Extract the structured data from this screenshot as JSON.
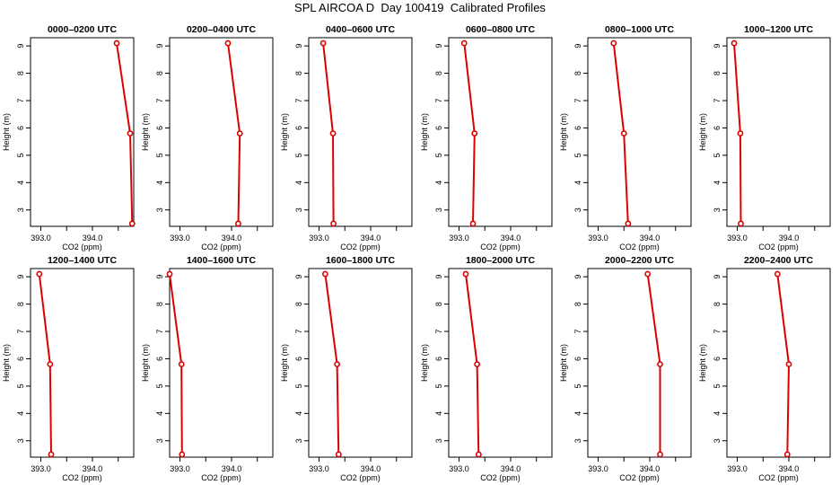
{
  "title": "SPL AIRCOA D  Day 100419  Calibrated Profiles",
  "colors": {
    "series": "#dd0000",
    "axis": "#000000",
    "background": "#ffffff"
  },
  "chart_data": [
    {
      "type": "line",
      "title": "0000–0200 UTC",
      "xlabel": "CO2 (ppm)",
      "ylabel": "Height (m)",
      "xlim": [
        392.8,
        394.8
      ],
      "ylim": [
        2.4,
        9.3
      ],
      "xticks": [
        393.0,
        393.5,
        394.0,
        394.5
      ],
      "xtick_labels": [
        "393.0",
        "",
        "394.0",
        ""
      ],
      "yticks": [
        3,
        4,
        5,
        6,
        7,
        8,
        9
      ],
      "ytick_labels": [
        "3",
        "4",
        "5",
        "6",
        "7",
        "8",
        "9"
      ],
      "x": [
        394.77,
        394.73,
        394.47
      ],
      "y": [
        2.5,
        5.8,
        9.1
      ]
    },
    {
      "type": "line",
      "title": "0200–0400 UTC",
      "xlabel": "CO2 (ppm)",
      "ylabel": "Height (m)",
      "xlim": [
        392.8,
        394.8
      ],
      "ylim": [
        2.4,
        9.3
      ],
      "xticks": [
        393.0,
        393.5,
        394.0,
        394.5
      ],
      "xtick_labels": [
        "393.0",
        "",
        "394.0",
        ""
      ],
      "yticks": [
        3,
        4,
        5,
        6,
        7,
        8,
        9
      ],
      "ytick_labels": [
        "3",
        "4",
        "5",
        "6",
        "7",
        "8",
        "9"
      ],
      "x": [
        394.13,
        394.16,
        393.93
      ],
      "y": [
        2.5,
        5.8,
        9.1
      ]
    },
    {
      "type": "line",
      "title": "0400–0600 UTC",
      "xlabel": "CO2 (ppm)",
      "ylabel": "Height (m)",
      "xlim": [
        392.8,
        394.8
      ],
      "ylim": [
        2.4,
        9.3
      ],
      "xticks": [
        393.0,
        393.5,
        394.0,
        394.5
      ],
      "xtick_labels": [
        "393.0",
        "",
        "394.0",
        ""
      ],
      "yticks": [
        3,
        4,
        5,
        6,
        7,
        8,
        9
      ],
      "ytick_labels": [
        "3",
        "4",
        "5",
        "6",
        "7",
        "8",
        "9"
      ],
      "x": [
        393.28,
        393.27,
        393.08
      ],
      "y": [
        2.5,
        5.8,
        9.1
      ]
    },
    {
      "type": "line",
      "title": "0600–0800 UTC",
      "xlabel": "CO2 (ppm)",
      "ylabel": "Height (m)",
      "xlim": [
        392.8,
        394.8
      ],
      "ylim": [
        2.4,
        9.3
      ],
      "xticks": [
        393.0,
        393.5,
        394.0,
        394.5
      ],
      "xtick_labels": [
        "393.0",
        "",
        "394.0",
        ""
      ],
      "yticks": [
        3,
        4,
        5,
        6,
        7,
        8,
        9
      ],
      "ytick_labels": [
        "3",
        "4",
        "5",
        "6",
        "7",
        "8",
        "9"
      ],
      "x": [
        393.27,
        393.3,
        393.1
      ],
      "y": [
        2.5,
        5.8,
        9.1
      ]
    },
    {
      "type": "line",
      "title": "0800–1000 UTC",
      "xlabel": "CO2 (ppm)",
      "ylabel": "Height (m)",
      "xlim": [
        392.8,
        394.8
      ],
      "ylim": [
        2.4,
        9.3
      ],
      "xticks": [
        393.0,
        393.5,
        394.0,
        394.5
      ],
      "xtick_labels": [
        "393.0",
        "",
        "394.0",
        ""
      ],
      "yticks": [
        3,
        4,
        5,
        6,
        7,
        8,
        9
      ],
      "ytick_labels": [
        "3",
        "4",
        "5",
        "6",
        "7",
        "8",
        "9"
      ],
      "x": [
        393.58,
        393.5,
        393.3
      ],
      "y": [
        2.5,
        5.8,
        9.1
      ]
    },
    {
      "type": "line",
      "title": "1000–1200 UTC",
      "xlabel": "CO2 (ppm)",
      "ylabel": "Height (m)",
      "xlim": [
        392.8,
        394.8
      ],
      "ylim": [
        2.4,
        9.3
      ],
      "xticks": [
        393.0,
        393.5,
        394.0,
        394.5
      ],
      "xtick_labels": [
        "393.0",
        "",
        "394.0",
        ""
      ],
      "yticks": [
        3,
        4,
        5,
        6,
        7,
        8,
        9
      ],
      "ytick_labels": [
        "3",
        "4",
        "5",
        "6",
        "7",
        "8",
        "9"
      ],
      "x": [
        393.07,
        393.06,
        392.94
      ],
      "y": [
        2.5,
        5.8,
        9.1
      ]
    },
    {
      "type": "line",
      "title": "1200–1400 UTC",
      "xlabel": "CO2 (ppm)",
      "ylabel": "Height (m)",
      "xlim": [
        392.8,
        394.8
      ],
      "ylim": [
        2.4,
        9.3
      ],
      "xticks": [
        393.0,
        393.5,
        394.0,
        394.5
      ],
      "xtick_labels": [
        "393.0",
        "",
        "394.0",
        ""
      ],
      "yticks": [
        3,
        4,
        5,
        6,
        7,
        8,
        9
      ],
      "ytick_labels": [
        "3",
        "4",
        "5",
        "6",
        "7",
        "8",
        "9"
      ],
      "x": [
        393.2,
        393.18,
        392.97
      ],
      "y": [
        2.5,
        5.8,
        9.1
      ]
    },
    {
      "type": "line",
      "title": "1400–1600 UTC",
      "xlabel": "CO2 (ppm)",
      "ylabel": "Height (m)",
      "xlim": [
        392.8,
        394.8
      ],
      "ylim": [
        2.4,
        9.3
      ],
      "xticks": [
        393.0,
        393.5,
        394.0,
        394.5
      ],
      "xtick_labels": [
        "393.0",
        "",
        "394.0",
        ""
      ],
      "yticks": [
        3,
        4,
        5,
        6,
        7,
        8,
        9
      ],
      "ytick_labels": [
        "3",
        "4",
        "5",
        "6",
        "7",
        "8",
        "9"
      ],
      "x": [
        393.04,
        393.03,
        392.8
      ],
      "y": [
        2.5,
        5.8,
        9.1
      ]
    },
    {
      "type": "line",
      "title": "1600–1800 UTC",
      "xlabel": "CO2 (ppm)",
      "ylabel": "Height (m)",
      "xlim": [
        392.8,
        394.8
      ],
      "ylim": [
        2.4,
        9.3
      ],
      "xticks": [
        393.0,
        393.5,
        394.0,
        394.5
      ],
      "xtick_labels": [
        "393.0",
        "",
        "394.0",
        ""
      ],
      "yticks": [
        3,
        4,
        5,
        6,
        7,
        8,
        9
      ],
      "ytick_labels": [
        "3",
        "4",
        "5",
        "6",
        "7",
        "8",
        "9"
      ],
      "x": [
        393.38,
        393.35,
        393.12
      ],
      "y": [
        2.5,
        5.8,
        9.1
      ]
    },
    {
      "type": "line",
      "title": "1800–2000 UTC",
      "xlabel": "CO2 (ppm)",
      "ylabel": "Height (m)",
      "xlim": [
        392.8,
        394.8
      ],
      "ylim": [
        2.4,
        9.3
      ],
      "xticks": [
        393.0,
        393.5,
        394.0,
        394.5
      ],
      "xtick_labels": [
        "393.0",
        "",
        "394.0",
        ""
      ],
      "yticks": [
        3,
        4,
        5,
        6,
        7,
        8,
        9
      ],
      "ytick_labels": [
        "3",
        "4",
        "5",
        "6",
        "7",
        "8",
        "9"
      ],
      "x": [
        393.38,
        393.35,
        393.13
      ],
      "y": [
        2.5,
        5.8,
        9.1
      ]
    },
    {
      "type": "line",
      "title": "2000–2200 UTC",
      "xlabel": "CO2 (ppm)",
      "ylabel": "Height (m)",
      "xlim": [
        392.8,
        394.8
      ],
      "ylim": [
        2.4,
        9.3
      ],
      "xticks": [
        393.0,
        393.5,
        394.0,
        394.5
      ],
      "xtick_labels": [
        "393.0",
        "",
        "394.0",
        ""
      ],
      "yticks": [
        3,
        4,
        5,
        6,
        7,
        8,
        9
      ],
      "ytick_labels": [
        "3",
        "4",
        "5",
        "6",
        "7",
        "8",
        "9"
      ],
      "x": [
        394.2,
        394.2,
        393.96
      ],
      "y": [
        2.5,
        5.8,
        9.1
      ]
    },
    {
      "type": "line",
      "title": "2200–2400 UTC",
      "xlabel": "CO2 (ppm)",
      "ylabel": "Height (m)",
      "xlim": [
        392.8,
        394.8
      ],
      "ylim": [
        2.4,
        9.3
      ],
      "xticks": [
        393.0,
        393.5,
        394.0,
        394.5
      ],
      "xtick_labels": [
        "393.0",
        "",
        "394.0",
        ""
      ],
      "yticks": [
        3,
        4,
        5,
        6,
        7,
        8,
        9
      ],
      "ytick_labels": [
        "3",
        "4",
        "5",
        "6",
        "7",
        "8",
        "9"
      ],
      "x": [
        393.97,
        394.0,
        393.78
      ],
      "y": [
        2.5,
        5.8,
        9.1
      ]
    }
  ]
}
